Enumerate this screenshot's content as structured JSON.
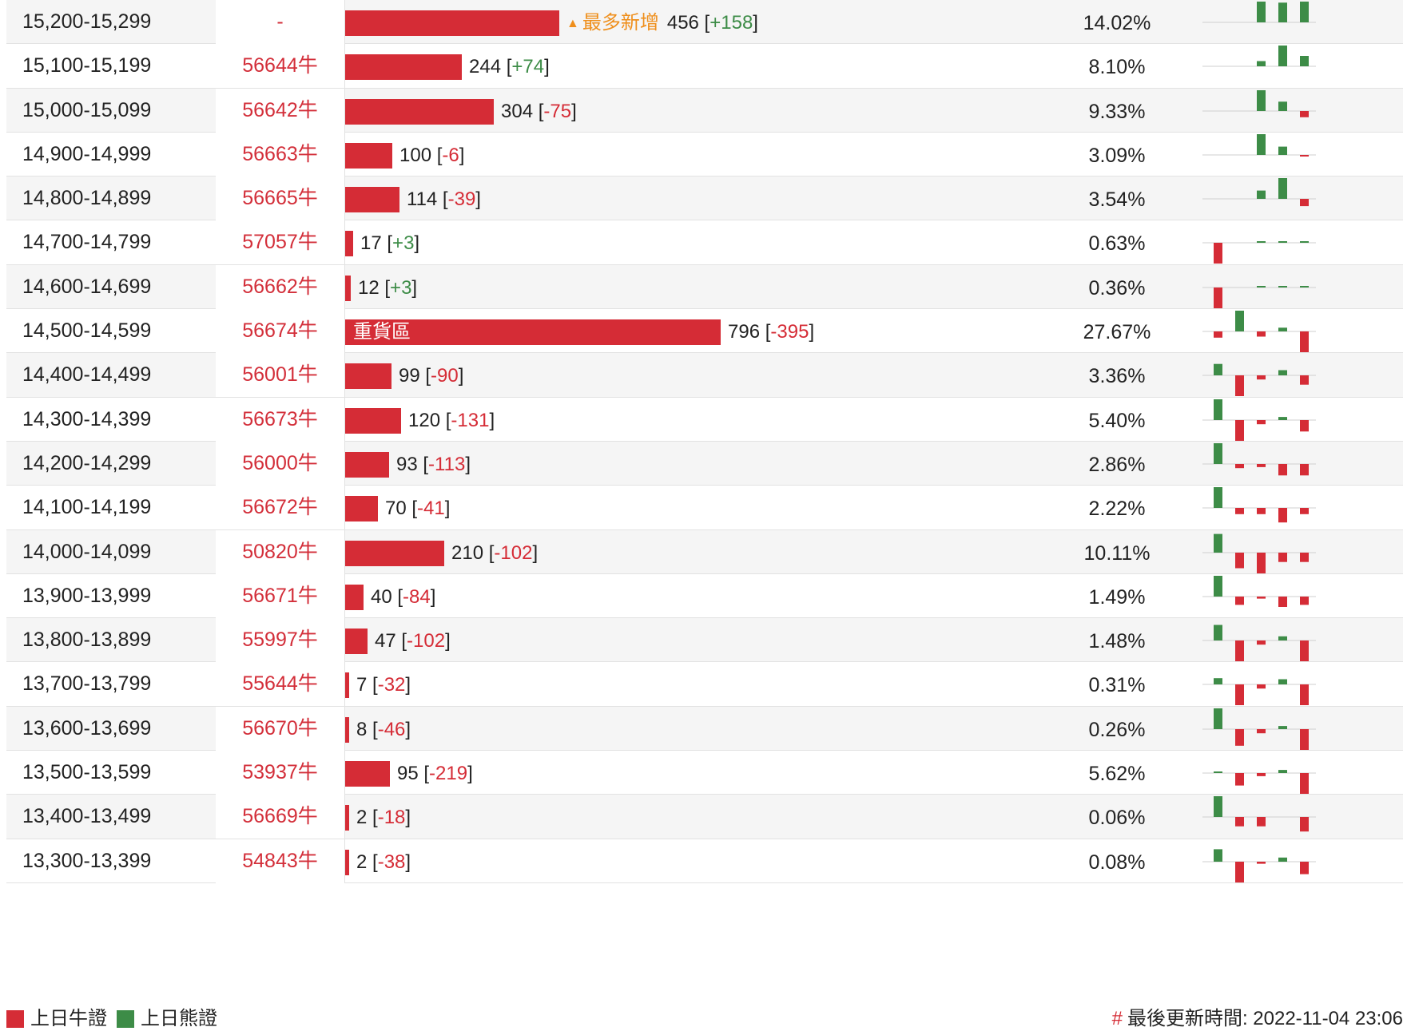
{
  "colors": {
    "bull": "#d52c36",
    "bear": "#3d8c47",
    "tag": "#ef8f1c"
  },
  "table": {
    "rows": [
      {
        "range": "15,200-15,299",
        "code": "-",
        "bar_fraction": 0.335,
        "bar_label": "",
        "tag": "最多新增",
        "value": "456",
        "change": "+158",
        "change_sign": "pos",
        "pct": "14.02%",
        "mini": [
          0,
          0,
          -1.0,
          -0.95,
          -1.0
        ]
      },
      {
        "range": "15,100-15,199",
        "code": "56644牛",
        "bar_fraction": 0.183,
        "bar_label": "",
        "tag": "",
        "value": "244",
        "change": "+74",
        "change_sign": "pos",
        "pct": "8.10%",
        "mini": [
          0,
          0,
          -0.25,
          -1.0,
          -0.5
        ]
      },
      {
        "range": "15,000-15,099",
        "code": "56642牛",
        "bar_fraction": 0.232,
        "bar_label": "",
        "tag": "",
        "value": "304",
        "change": "-75",
        "change_sign": "neg",
        "pct": "9.33%",
        "mini": [
          0,
          0,
          -1.0,
          -0.45,
          0.3
        ]
      },
      {
        "range": "14,900-14,999",
        "code": "56663牛",
        "bar_fraction": 0.074,
        "bar_label": "",
        "tag": "",
        "value": "100",
        "change": "-6",
        "change_sign": "neg",
        "pct": "3.09%",
        "mini": [
          0,
          0,
          -1.0,
          -0.4,
          0.05
        ]
      },
      {
        "range": "14,800-14,899",
        "code": "56665牛",
        "bar_fraction": 0.085,
        "bar_label": "",
        "tag": "",
        "value": "114",
        "change": "-39",
        "change_sign": "neg",
        "pct": "3.54%",
        "mini": [
          0,
          0,
          -0.4,
          -1.0,
          0.35
        ]
      },
      {
        "range": "14,700-14,799",
        "code": "57057牛",
        "bar_fraction": 0.012,
        "bar_label": "",
        "tag": "",
        "value": "17",
        "change": "+3",
        "change_sign": "pos",
        "pct": "0.63%",
        "mini": [
          1.0,
          0,
          -0.02,
          -0.02,
          -0.02
        ]
      },
      {
        "range": "14,600-14,699",
        "code": "56662牛",
        "bar_fraction": 0.009,
        "bar_label": "",
        "tag": "",
        "value": "12",
        "change": "+3",
        "change_sign": "pos",
        "pct": "0.36%",
        "mini": [
          1.0,
          0,
          -0.02,
          -0.02,
          -0.02
        ]
      },
      {
        "range": "14,500-14,599",
        "code": "56674牛",
        "bar_fraction": 0.588,
        "bar_label": "重貨區",
        "tag": "",
        "value": "796",
        "change": "-395",
        "change_sign": "neg",
        "pct": "27.67%",
        "mini": [
          0.3,
          -1.0,
          0.25,
          -0.18,
          1.0
        ]
      },
      {
        "range": "14,400-14,499",
        "code": "56001牛",
        "bar_fraction": 0.073,
        "bar_label": "",
        "tag": "",
        "value": "99",
        "change": "-90",
        "change_sign": "neg",
        "pct": "3.36%",
        "mini": [
          -0.55,
          1.0,
          0.2,
          -0.25,
          0.45
        ]
      },
      {
        "range": "14,300-14,399",
        "code": "56673牛",
        "bar_fraction": 0.088,
        "bar_label": "",
        "tag": "",
        "value": "120",
        "change": "-131",
        "change_sign": "neg",
        "pct": "5.40%",
        "mini": [
          -1.0,
          1.0,
          0.2,
          -0.15,
          0.55
        ]
      },
      {
        "range": "14,200-14,299",
        "code": "56000牛",
        "bar_fraction": 0.069,
        "bar_label": "",
        "tag": "",
        "value": "93",
        "change": "-113",
        "change_sign": "neg",
        "pct": "2.86%",
        "mini": [
          -1.0,
          0.2,
          0.15,
          0.55,
          0.55
        ]
      },
      {
        "range": "14,100-14,199",
        "code": "56672牛",
        "bar_fraction": 0.051,
        "bar_label": "",
        "tag": "",
        "value": "70",
        "change": "-41",
        "change_sign": "neg",
        "pct": "2.22%",
        "mini": [
          -1.0,
          0.3,
          0.3,
          0.7,
          0.3
        ]
      },
      {
        "range": "14,000-14,099",
        "code": "50820牛",
        "bar_fraction": 0.155,
        "bar_label": "",
        "tag": "",
        "value": "210",
        "change": "-102",
        "change_sign": "neg",
        "pct": "10.11%",
        "mini": [
          -0.9,
          0.75,
          1.0,
          0.45,
          0.45
        ]
      },
      {
        "range": "13,900-13,999",
        "code": "56671牛",
        "bar_fraction": 0.029,
        "bar_label": "",
        "tag": "",
        "value": "40",
        "change": "-84",
        "change_sign": "neg",
        "pct": "1.49%",
        "mini": [
          -1.0,
          0.4,
          0.1,
          0.5,
          0.4
        ]
      },
      {
        "range": "13,800-13,899",
        "code": "55997牛",
        "bar_fraction": 0.035,
        "bar_label": "",
        "tag": "",
        "value": "47",
        "change": "-102",
        "change_sign": "neg",
        "pct": "1.48%",
        "mini": [
          -0.75,
          1.0,
          0.2,
          -0.2,
          1.0
        ]
      },
      {
        "range": "13,700-13,799",
        "code": "55644牛",
        "bar_fraction": 0.005,
        "bar_label": "",
        "tag": "",
        "value": "7",
        "change": "-32",
        "change_sign": "neg",
        "pct": "0.31%",
        "mini": [
          -0.3,
          1.0,
          0.2,
          -0.25,
          1.0
        ]
      },
      {
        "range": "13,600-13,699",
        "code": "56670牛",
        "bar_fraction": 0.006,
        "bar_label": "",
        "tag": "",
        "value": "8",
        "change": "-46",
        "change_sign": "neg",
        "pct": "0.26%",
        "mini": [
          -1.0,
          0.8,
          0.2,
          -0.15,
          1.0
        ]
      },
      {
        "range": "13,500-13,599",
        "code": "53937牛",
        "bar_fraction": 0.07,
        "bar_label": "",
        "tag": "",
        "value": "95",
        "change": "-219",
        "change_sign": "neg",
        "pct": "5.62%",
        "mini": [
          -0.05,
          0.6,
          0.15,
          -0.15,
          1.0
        ]
      },
      {
        "range": "13,400-13,499",
        "code": "56669牛",
        "bar_fraction": 0.002,
        "bar_label": "",
        "tag": "",
        "value": "2",
        "change": "-18",
        "change_sign": "neg",
        "pct": "0.06%",
        "mini": [
          -1.0,
          0.45,
          0.45,
          0,
          0.7
        ]
      },
      {
        "range": "13,300-13,399",
        "code": "54843牛",
        "bar_fraction": 0.002,
        "bar_label": "",
        "tag": "",
        "value": "2",
        "change": "-38",
        "change_sign": "neg",
        "pct": "0.08%",
        "mini": [
          -0.6,
          1.0,
          0.1,
          -0.2,
          0.6
        ]
      }
    ]
  },
  "legend": {
    "items": [
      {
        "label": "上日牛證",
        "color": "#d52c36"
      },
      {
        "label": "上日熊證",
        "color": "#3d8c47"
      }
    ]
  },
  "footer": {
    "hash": "#",
    "updated_label": "最後更新時間: 2022-11-04 23:06"
  }
}
